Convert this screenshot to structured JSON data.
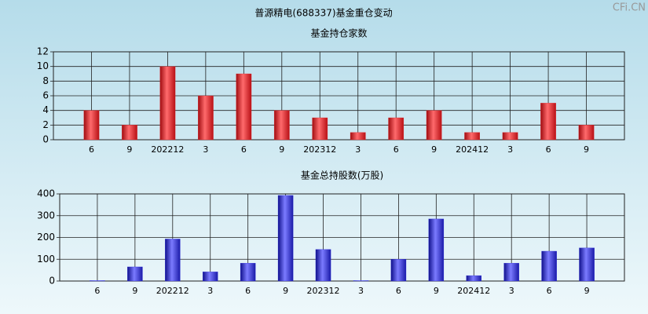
{
  "title": "普源精电(688337)基金重仓变动",
  "watermark": "CFi.CN",
  "chart_data": [
    {
      "type": "bar",
      "title": "基金持仓家数",
      "categories": [
        "6",
        "9",
        "202212",
        "3",
        "6",
        "9",
        "202312",
        "3",
        "6",
        "9",
        "202412",
        "3",
        "6",
        "9"
      ],
      "values": [
        4,
        2,
        10,
        6,
        9,
        4,
        3,
        1,
        3,
        4,
        1,
        1,
        5,
        2
      ],
      "color": "#e8262b",
      "ylim": [
        0,
        12
      ],
      "yticks": [
        0,
        2,
        4,
        6,
        8,
        10,
        12
      ],
      "grid": true
    },
    {
      "type": "bar",
      "title": "基金总持股数(万股)",
      "categories": [
        "6",
        "9",
        "202212",
        "3",
        "6",
        "9",
        "202312",
        "3",
        "6",
        "9",
        "202412",
        "3",
        "6",
        "9"
      ],
      "values": [
        2,
        65,
        193,
        42,
        82,
        393,
        145,
        2,
        100,
        285,
        25,
        82,
        137,
        152
      ],
      "color": "#2a2ae0",
      "ylim": [
        0,
        400
      ],
      "yticks": [
        0,
        100,
        200,
        300,
        400
      ],
      "grid": true
    }
  ]
}
